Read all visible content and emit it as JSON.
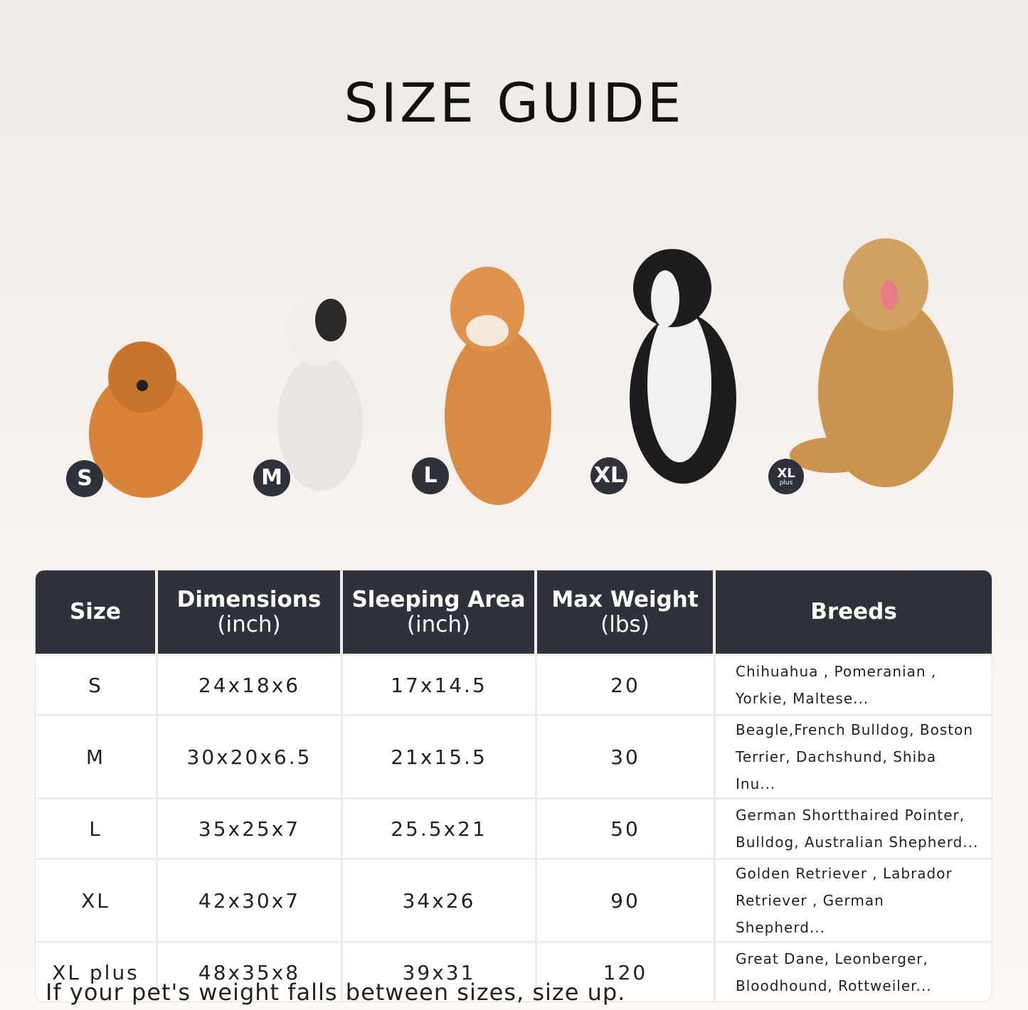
{
  "title": "SIZE GUIDE",
  "dogs": [
    {
      "badge": "S",
      "color": "#d9833a"
    },
    {
      "badge": "M",
      "color": "#e8e4e2"
    },
    {
      "badge": "L",
      "color": "#d98a45"
    },
    {
      "badge": "XL",
      "color": "#1d1d1f"
    },
    {
      "badge": "XL",
      "badge_sub": "plus",
      "color": "#c9944f"
    }
  ],
  "table": {
    "headers": [
      "Size",
      "Dimensions\n(inch)",
      "Sleeping Area\n(inch)",
      "Max Weight\n(lbs)",
      "Breeds"
    ],
    "header_lines": [
      [
        "Size"
      ],
      [
        "Dimensions",
        "(inch)"
      ],
      [
        "Sleeping Area",
        "(inch)"
      ],
      [
        "Max Weight",
        "(lbs)"
      ],
      [
        "Breeds"
      ]
    ],
    "rows": [
      {
        "size": "S",
        "dimensions": "24x18x6",
        "sleeping_area": "17x14.5",
        "max_weight": "20",
        "breeds": [
          "Chihuahua , Pomeranian ,",
          "Yorkie, Maltese..."
        ]
      },
      {
        "size": "M",
        "dimensions": "30x20x6.5",
        "sleeping_area": "21x15.5",
        "max_weight": "30",
        "breeds": [
          "Beagle,French Bulldog, Boston",
          "Terrier, Dachshund, Shiba Inu..."
        ]
      },
      {
        "size": "L",
        "dimensions": "35x25x7",
        "sleeping_area": "25.5x21",
        "max_weight": "50",
        "breeds": [
          "German Shortthaired Pointer,",
          "Bulldog, Australian Shepherd..."
        ]
      },
      {
        "size": "XL",
        "dimensions": "42x30x7",
        "sleeping_area": "34x26",
        "max_weight": "90",
        "breeds": [
          "Golden Retriever , Labrador",
          "Retriever , German Shepherd..."
        ]
      },
      {
        "size": "XL plus",
        "dimensions": "48x35x8",
        "sleeping_area": "39x31",
        "max_weight": "120",
        "breeds": [
          "Great Dane, Leonberger,",
          "Bloodhound, Rottweiler..."
        ]
      }
    ]
  },
  "note": "If your pet's weight falls between sizes, size up.",
  "colors": {
    "header_bg": "#2f323b",
    "badge_bg": "#2f323b"
  }
}
